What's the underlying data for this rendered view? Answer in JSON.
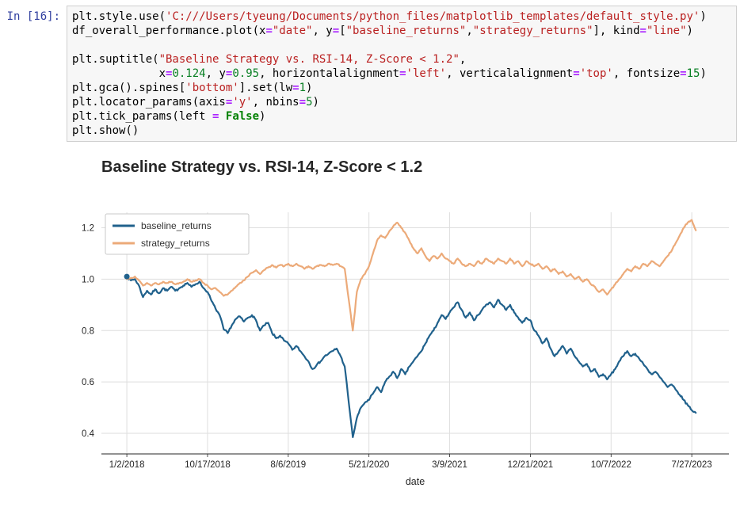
{
  "cell": {
    "prompt": "In [16]:",
    "code_lines": [
      [
        [
          "plt.style.use(",
          "p"
        ],
        [
          "'C:///Users/tyeung/Documents/python_files/matplotlib_templates/default_style.py'",
          "s"
        ],
        [
          ")",
          "p"
        ]
      ],
      [
        [
          "df_overall_performance.plot(x",
          "p"
        ],
        [
          "=",
          "o"
        ],
        [
          "\"date\"",
          "s"
        ],
        [
          ", y",
          "p"
        ],
        [
          "=",
          "o"
        ],
        [
          "[",
          "p"
        ],
        [
          "\"baseline_returns\"",
          "s"
        ],
        [
          ",",
          "p"
        ],
        [
          "\"strategy_returns\"",
          "s"
        ],
        [
          "], kind",
          "p"
        ],
        [
          "=",
          "o"
        ],
        [
          "\"line\"",
          "s"
        ],
        [
          ")",
          "p"
        ]
      ],
      [],
      [
        [
          "plt.suptitle(",
          "p"
        ],
        [
          "\"Baseline Strategy vs. RSI-14, Z-Score < 1.2\"",
          "s"
        ],
        [
          ",",
          "p"
        ]
      ],
      [
        [
          "             x",
          "p"
        ],
        [
          "=",
          "o"
        ],
        [
          "0.124",
          "n"
        ],
        [
          ", y",
          "p"
        ],
        [
          "=",
          "o"
        ],
        [
          "0.95",
          "n"
        ],
        [
          ", horizontalalignment",
          "p"
        ],
        [
          "=",
          "o"
        ],
        [
          "'left'",
          "s"
        ],
        [
          ", verticalalignment",
          "p"
        ],
        [
          "=",
          "o"
        ],
        [
          "'top'",
          "s"
        ],
        [
          ", fontsize",
          "p"
        ],
        [
          "=",
          "o"
        ],
        [
          "15",
          "n"
        ],
        [
          ")",
          "p"
        ]
      ],
      [
        [
          "plt.gca().spines[",
          "p"
        ],
        [
          "'bottom'",
          "s"
        ],
        [
          "].set(lw",
          "p"
        ],
        [
          "=",
          "o"
        ],
        [
          "1",
          "n"
        ],
        [
          ")",
          "p"
        ]
      ],
      [
        [
          "plt.locator_params(axis",
          "p"
        ],
        [
          "=",
          "o"
        ],
        [
          "'y'",
          "s"
        ],
        [
          ", nbins",
          "p"
        ],
        [
          "=",
          "o"
        ],
        [
          "5",
          "n"
        ],
        [
          ")",
          "p"
        ]
      ],
      [
        [
          "plt.tick_params(left ",
          "p"
        ],
        [
          "=",
          "o"
        ],
        [
          " ",
          "p"
        ],
        [
          "False",
          "k"
        ],
        [
          ")",
          "p"
        ]
      ],
      [
        [
          "plt.show()",
          "p"
        ]
      ]
    ]
  },
  "chart_data": {
    "type": "line",
    "title": "Baseline Strategy vs. RSI-14, Z-Score < 1.2",
    "xlabel": "date",
    "x_tick_labels": [
      "1/2/2018",
      "10/17/2018",
      "8/6/2019",
      "5/21/2020",
      "3/9/2021",
      "12/21/2021",
      "10/7/2022",
      "7/27/2023"
    ],
    "x_tick_days": [
      0,
      200,
      400,
      600,
      800,
      1000,
      1200,
      1400
    ],
    "y_ticks": [
      0.4,
      0.6,
      0.8,
      1.0,
      1.2
    ],
    "xlim": [
      -63,
      1492
    ],
    "ylim": [
      0.32,
      1.26
    ],
    "grid": true,
    "grid_color": "#dedede",
    "legend_position": "upper-left",
    "x_day_step": 10,
    "series": [
      {
        "name": "baseline_returns",
        "color": "#20618c",
        "marker_first_point": true,
        "values": [
          1.01,
          0.995,
          1.0,
          0.975,
          0.93,
          0.955,
          0.94,
          0.96,
          0.945,
          0.965,
          0.955,
          0.97,
          0.955,
          0.965,
          0.975,
          0.985,
          0.97,
          0.98,
          0.99,
          0.965,
          0.95,
          0.915,
          0.885,
          0.86,
          0.805,
          0.79,
          0.82,
          0.845,
          0.855,
          0.835,
          0.85,
          0.86,
          0.84,
          0.8,
          0.82,
          0.83,
          0.79,
          0.77,
          0.78,
          0.76,
          0.75,
          0.725,
          0.74,
          0.72,
          0.7,
          0.68,
          0.65,
          0.665,
          0.68,
          0.7,
          0.71,
          0.72,
          0.73,
          0.7,
          0.66,
          0.52,
          0.385,
          0.46,
          0.5,
          0.52,
          0.53,
          0.555,
          0.58,
          0.56,
          0.6,
          0.62,
          0.64,
          0.615,
          0.65,
          0.63,
          0.66,
          0.68,
          0.7,
          0.72,
          0.75,
          0.78,
          0.8,
          0.83,
          0.86,
          0.845,
          0.87,
          0.89,
          0.91,
          0.88,
          0.85,
          0.87,
          0.84,
          0.86,
          0.88,
          0.9,
          0.91,
          0.89,
          0.92,
          0.9,
          0.88,
          0.9,
          0.87,
          0.85,
          0.83,
          0.85,
          0.84,
          0.8,
          0.78,
          0.75,
          0.77,
          0.73,
          0.7,
          0.72,
          0.74,
          0.71,
          0.73,
          0.7,
          0.68,
          0.66,
          0.67,
          0.64,
          0.65,
          0.62,
          0.63,
          0.61,
          0.63,
          0.65,
          0.68,
          0.7,
          0.72,
          0.7,
          0.71,
          0.69,
          0.67,
          0.65,
          0.63,
          0.64,
          0.62,
          0.6,
          0.58,
          0.59,
          0.57,
          0.55,
          0.53,
          0.51,
          0.49,
          0.48
        ]
      },
      {
        "name": "strategy_returns",
        "color": "#ecaa79",
        "marker_first_point": false,
        "values": [
          1.0,
          1.005,
          1.01,
          0.995,
          0.975,
          0.985,
          0.975,
          0.985,
          0.98,
          0.99,
          0.985,
          0.99,
          0.98,
          0.985,
          0.99,
          1.0,
          0.99,
          0.995,
          1.0,
          0.985,
          0.975,
          0.96,
          0.965,
          0.95,
          0.935,
          0.94,
          0.955,
          0.97,
          0.985,
          0.995,
          1.01,
          1.025,
          1.035,
          1.02,
          1.035,
          1.045,
          1.055,
          1.045,
          1.055,
          1.05,
          1.06,
          1.05,
          1.06,
          1.05,
          1.04,
          1.05,
          1.04,
          1.05,
          1.055,
          1.05,
          1.06,
          1.055,
          1.06,
          1.05,
          1.04,
          0.92,
          0.8,
          0.95,
          1.0,
          1.02,
          1.05,
          1.1,
          1.15,
          1.17,
          1.16,
          1.185,
          1.205,
          1.22,
          1.2,
          1.18,
          1.15,
          1.12,
          1.1,
          1.12,
          1.09,
          1.07,
          1.09,
          1.08,
          1.1,
          1.08,
          1.07,
          1.06,
          1.08,
          1.06,
          1.05,
          1.06,
          1.05,
          1.07,
          1.06,
          1.08,
          1.07,
          1.06,
          1.08,
          1.07,
          1.06,
          1.08,
          1.06,
          1.07,
          1.05,
          1.07,
          1.06,
          1.05,
          1.06,
          1.04,
          1.05,
          1.03,
          1.04,
          1.02,
          1.03,
          1.01,
          1.02,
          1.0,
          1.01,
          0.99,
          1.0,
          0.98,
          0.97,
          0.95,
          0.96,
          0.94,
          0.96,
          0.98,
          1.0,
          1.02,
          1.04,
          1.03,
          1.05,
          1.04,
          1.06,
          1.05,
          1.07,
          1.06,
          1.05,
          1.07,
          1.09,
          1.11,
          1.14,
          1.17,
          1.2,
          1.22,
          1.23,
          1.19
        ]
      }
    ]
  }
}
